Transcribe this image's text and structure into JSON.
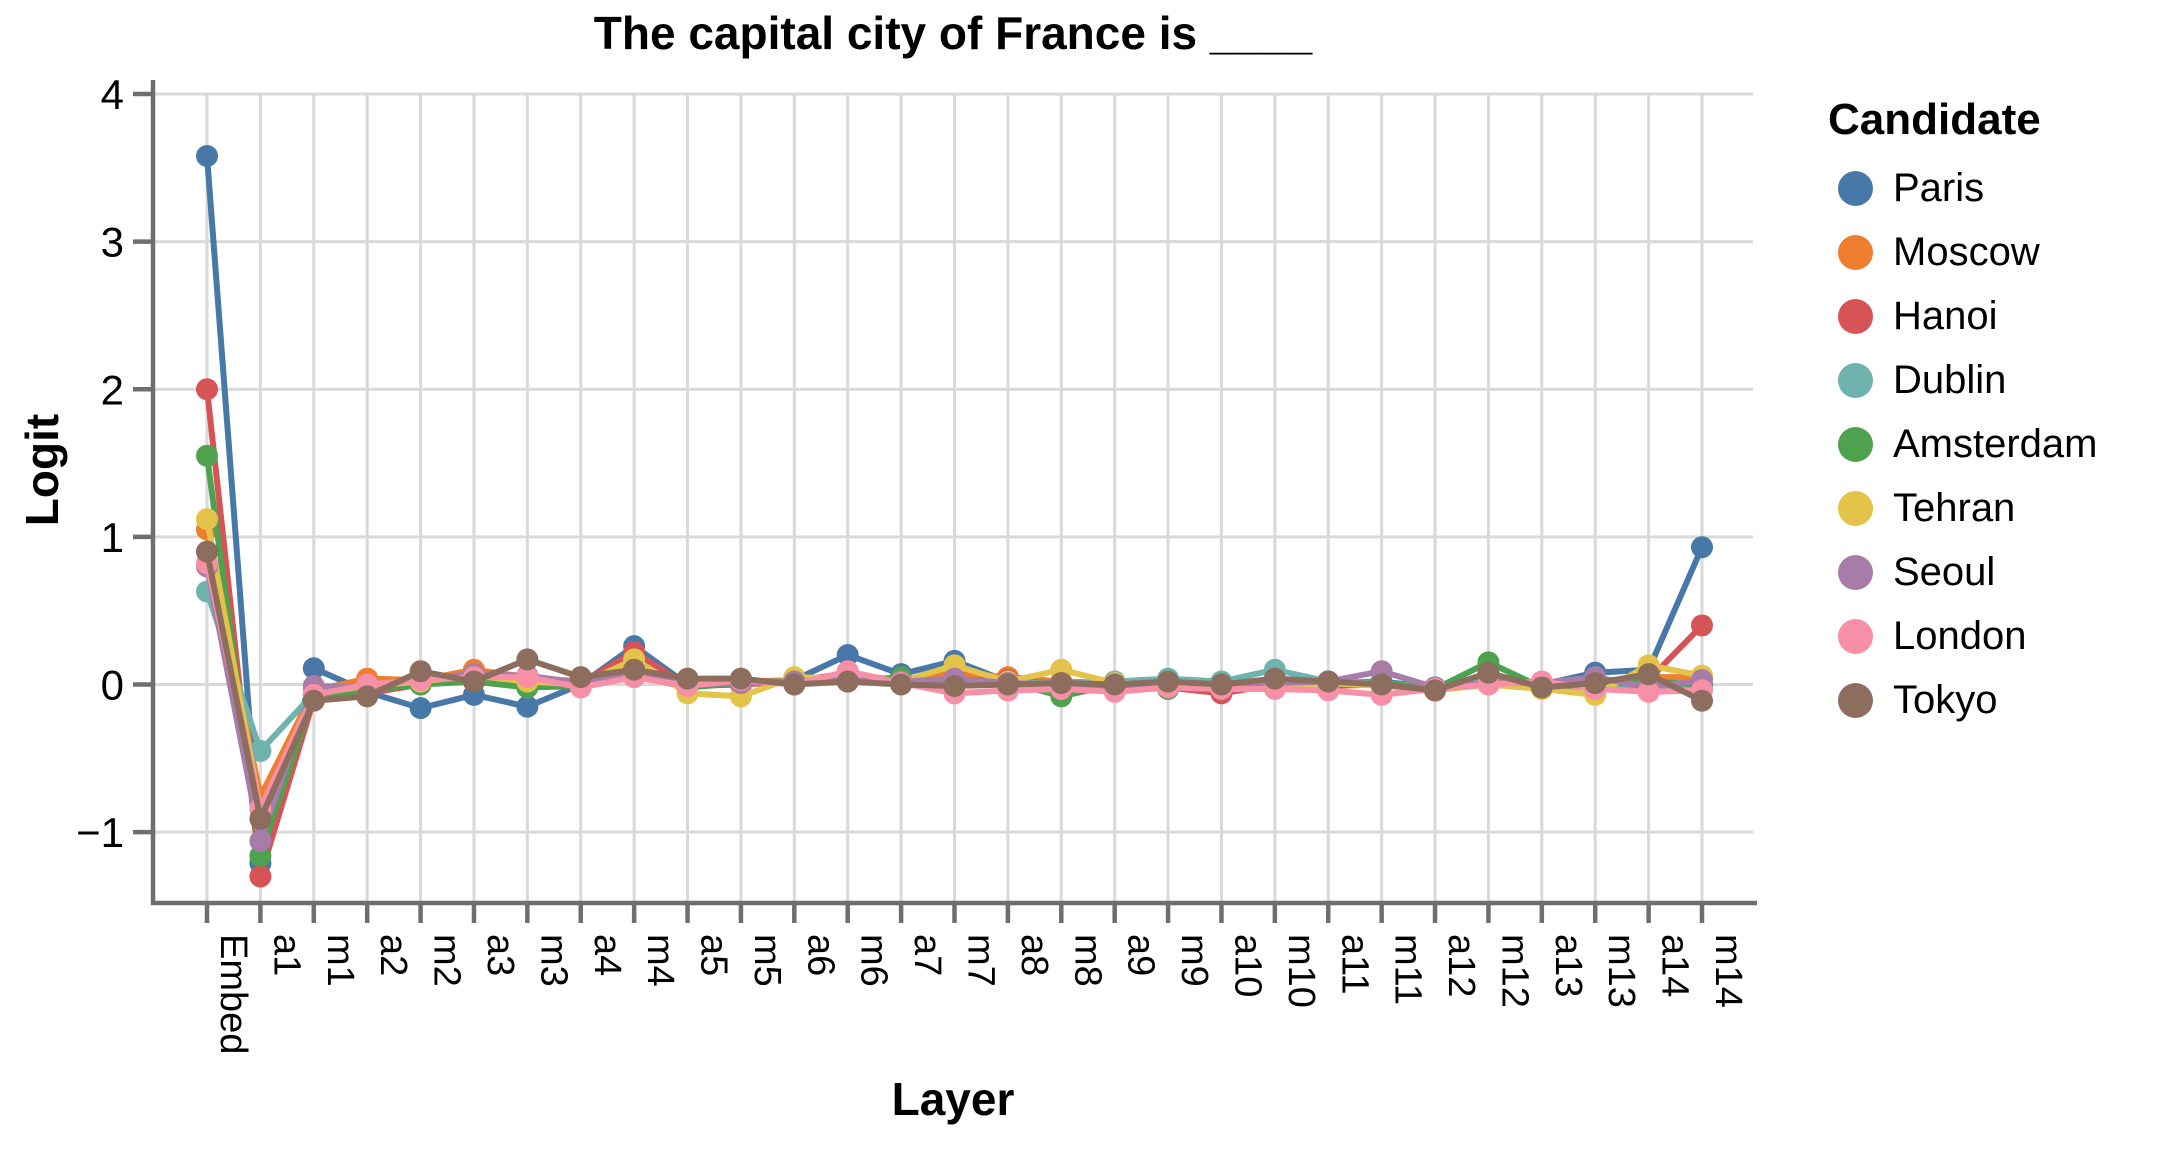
{
  "title": "The capital city of France is ____",
  "chart_data": {
    "type": "line",
    "title": "The capital city of France is ____",
    "xlabel": "Layer",
    "ylabel": "Logit",
    "legend_title": "Candidate",
    "legend_position": "right",
    "grid": true,
    "ylim": [
      -1.48,
      4.0
    ],
    "y_ticks": [
      {
        "value": 4,
        "label": "4"
      },
      {
        "value": 3,
        "label": "3"
      },
      {
        "value": 2,
        "label": "2"
      },
      {
        "value": 1,
        "label": "1"
      },
      {
        "value": 0,
        "label": "0"
      },
      {
        "value": -1,
        "label": "−1"
      }
    ],
    "categories": [
      "Embed",
      "a1",
      "m1",
      "a2",
      "m2",
      "a3",
      "m3",
      "a4",
      "m4",
      "a5",
      "m5",
      "a6",
      "m6",
      "a7",
      "m7",
      "a8",
      "m8",
      "a9",
      "m9",
      "a10",
      "m10",
      "a11",
      "m11",
      "a12",
      "m12",
      "a13",
      "m13",
      "a14",
      "m14"
    ],
    "series": [
      {
        "name": "Paris",
        "color": "#4878A8",
        "values": [
          3.58,
          -1.21,
          0.11,
          -0.05,
          -0.16,
          -0.07,
          -0.15,
          0.0,
          0.26,
          0.0,
          0.01,
          0.03,
          0.2,
          0.07,
          0.16,
          0.02,
          0.01,
          0.01,
          0.02,
          0.0,
          0.02,
          0.01,
          0.02,
          -0.02,
          0.03,
          0.0,
          0.08,
          0.1,
          0.93
        ]
      },
      {
        "name": "Moscow",
        "color": "#EF7E2E",
        "values": [
          1.05,
          -0.76,
          -0.04,
          0.04,
          0.03,
          0.1,
          0.05,
          0.02,
          0.12,
          -0.02,
          0.02,
          0.03,
          0.05,
          0.03,
          0.08,
          0.05,
          0.02,
          0.01,
          0.01,
          -0.02,
          0.03,
          0.01,
          0.0,
          -0.03,
          0.02,
          -0.01,
          -0.02,
          0.05,
          0.05
        ]
      },
      {
        "name": "Hanoi",
        "color": "#D65456",
        "values": [
          2.0,
          -1.3,
          -0.1,
          -0.06,
          0.0,
          0.03,
          0.03,
          0.01,
          0.22,
          -0.01,
          0.0,
          0.02,
          0.08,
          0.02,
          0.03,
          0.03,
          0.0,
          -0.01,
          -0.02,
          -0.06,
          0.0,
          -0.01,
          0.0,
          -0.04,
          0.01,
          -0.02,
          -0.01,
          0.03,
          0.4
        ]
      },
      {
        "name": "Dublin",
        "color": "#6FB3AE",
        "values": [
          0.63,
          -0.45,
          -0.06,
          -0.02,
          0.01,
          0.04,
          -0.02,
          0.0,
          0.05,
          0.0,
          0.02,
          0.02,
          0.03,
          0.04,
          0.02,
          0.01,
          0.01,
          0.02,
          0.04,
          0.02,
          0.1,
          0.02,
          0.01,
          -0.02,
          0.02,
          -0.01,
          -0.02,
          -0.03,
          -0.01
        ]
      },
      {
        "name": "Amsterdam",
        "color": "#4EA14E",
        "values": [
          1.55,
          -1.16,
          -0.07,
          -0.04,
          0.0,
          0.02,
          -0.02,
          -0.01,
          0.06,
          -0.02,
          0.01,
          0.01,
          0.02,
          0.05,
          0.0,
          0.02,
          -0.08,
          0.0,
          -0.03,
          -0.01,
          0.02,
          0.0,
          0.01,
          -0.03,
          0.15,
          -0.02,
          0.0,
          0.02,
          0.0
        ]
      },
      {
        "name": "Tehran",
        "color": "#E3C34A",
        "values": [
          1.12,
          -0.85,
          -0.06,
          -0.01,
          0.02,
          0.06,
          0.02,
          0.0,
          0.17,
          -0.06,
          -0.08,
          0.05,
          0.04,
          0.02,
          0.13,
          0.02,
          0.1,
          0.01,
          0.0,
          -0.02,
          -0.02,
          0.01,
          -0.01,
          -0.04,
          0.0,
          -0.03,
          -0.07,
          0.13,
          0.06
        ]
      },
      {
        "name": "Seoul",
        "color": "#A77CA8",
        "values": [
          0.8,
          -1.06,
          -0.01,
          -0.02,
          0.04,
          0.07,
          0.06,
          0.01,
          0.08,
          0.0,
          0.01,
          0.02,
          0.03,
          0.02,
          0.04,
          0.01,
          0.0,
          0.0,
          0.01,
          0.0,
          0.01,
          0.02,
          0.09,
          -0.02,
          0.01,
          0.01,
          0.05,
          -0.02,
          0.03
        ]
      },
      {
        "name": "London",
        "color": "#F78FA7",
        "values": [
          0.82,
          -0.84,
          -0.07,
          0.0,
          0.03,
          0.05,
          0.05,
          -0.02,
          0.05,
          -0.01,
          0.03,
          0.0,
          0.09,
          0.01,
          -0.06,
          -0.04,
          -0.03,
          -0.05,
          -0.02,
          -0.03,
          -0.03,
          -0.04,
          -0.07,
          -0.03,
          0.0,
          0.02,
          -0.03,
          -0.05,
          -0.04
        ]
      },
      {
        "name": "Tokyo",
        "color": "#8C6D5E",
        "values": [
          0.9,
          -0.91,
          -0.11,
          -0.08,
          0.09,
          0.02,
          0.17,
          0.05,
          0.1,
          0.04,
          0.04,
          0.0,
          0.02,
          0.0,
          -0.01,
          0.0,
          0.01,
          0.0,
          0.02,
          0.0,
          0.04,
          0.02,
          0.0,
          -0.04,
          0.08,
          -0.02,
          0.01,
          0.07,
          -0.11
        ]
      }
    ],
    "styling": {
      "grid_color": "#d9d9d9",
      "axis_color": "#6e6e6e",
      "text_color": "#000000",
      "background": "#ffffff"
    }
  }
}
